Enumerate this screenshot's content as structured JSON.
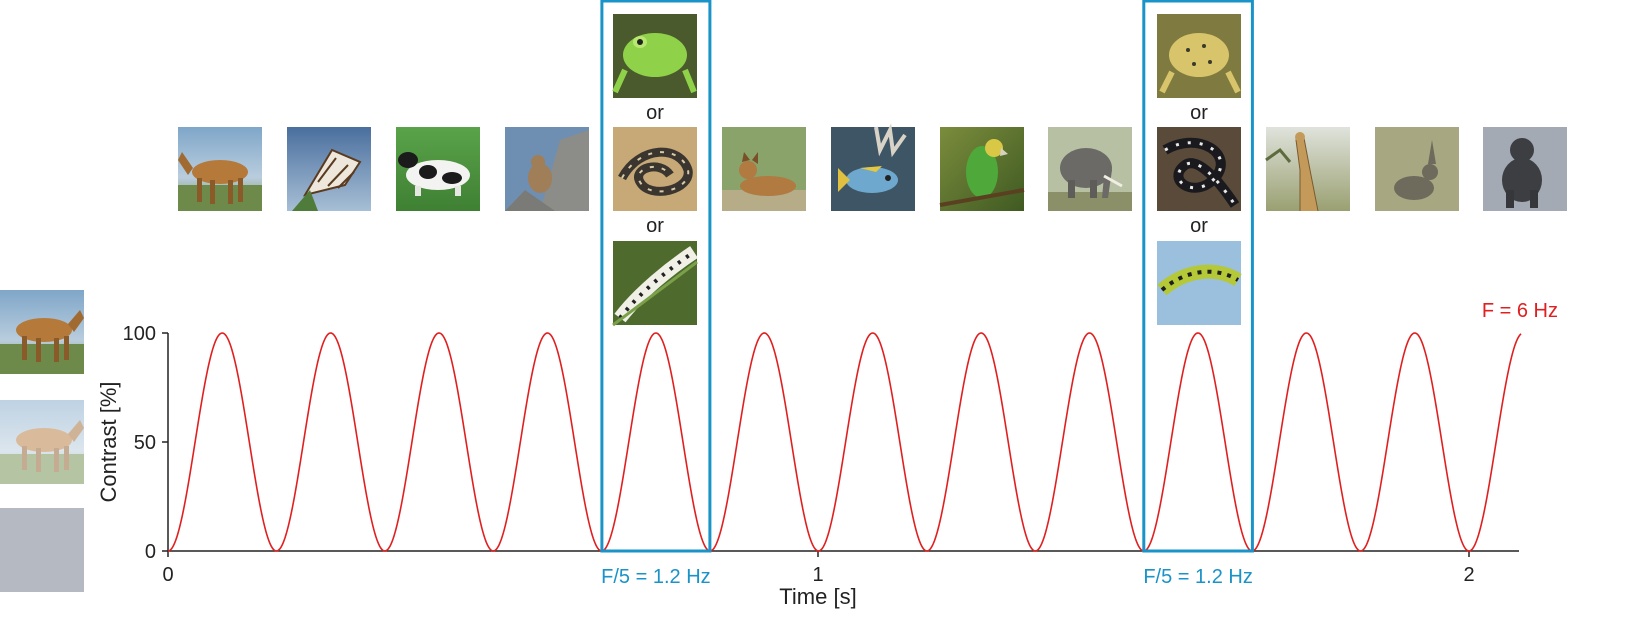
{
  "chart_data": {
    "type": "line",
    "xlabel": "Time [s]",
    "ylabel": "Contrast [%]",
    "x_ticks": [
      "0",
      "1",
      "2"
    ],
    "y_ticks": [
      "0",
      "50",
      "100"
    ],
    "xlim": [
      0,
      2.08
    ],
    "ylim": [
      0,
      100
    ],
    "series": [
      {
        "name": "F = 6 Hz",
        "frequency_hz": 6,
        "color": "#e02020"
      }
    ],
    "oddball_windows": [
      {
        "label": "F/5 = 1.2 Hz",
        "start_s": 0.667,
        "end_s": 0.833
      },
      {
        "label": "F/5 = 1.2 Hz",
        "start_s": 1.5,
        "end_s": 1.667
      }
    ]
  },
  "or_label": "or",
  "contrast_levels": [
    100,
    50,
    0
  ],
  "stimuli": [
    {
      "name": "horse",
      "type": "base"
    },
    {
      "name": "butterfly",
      "type": "base"
    },
    {
      "name": "cow",
      "type": "base"
    },
    {
      "name": "squirrel",
      "type": "base"
    },
    {
      "name": "frog / snake / caterpillar",
      "type": "oddball"
    },
    {
      "name": "dog",
      "type": "base"
    },
    {
      "name": "fish",
      "type": "base"
    },
    {
      "name": "parrot",
      "type": "base"
    },
    {
      "name": "elephant",
      "type": "base"
    },
    {
      "name": "frog / snake / caterpillar",
      "type": "oddball"
    },
    {
      "name": "giraffe",
      "type": "base"
    },
    {
      "name": "rabbit",
      "type": "base"
    },
    {
      "name": "chimpanzee",
      "type": "base"
    }
  ],
  "colors": {
    "wave": "#e02020",
    "window": "#1a93c8",
    "axis": "#222222"
  }
}
